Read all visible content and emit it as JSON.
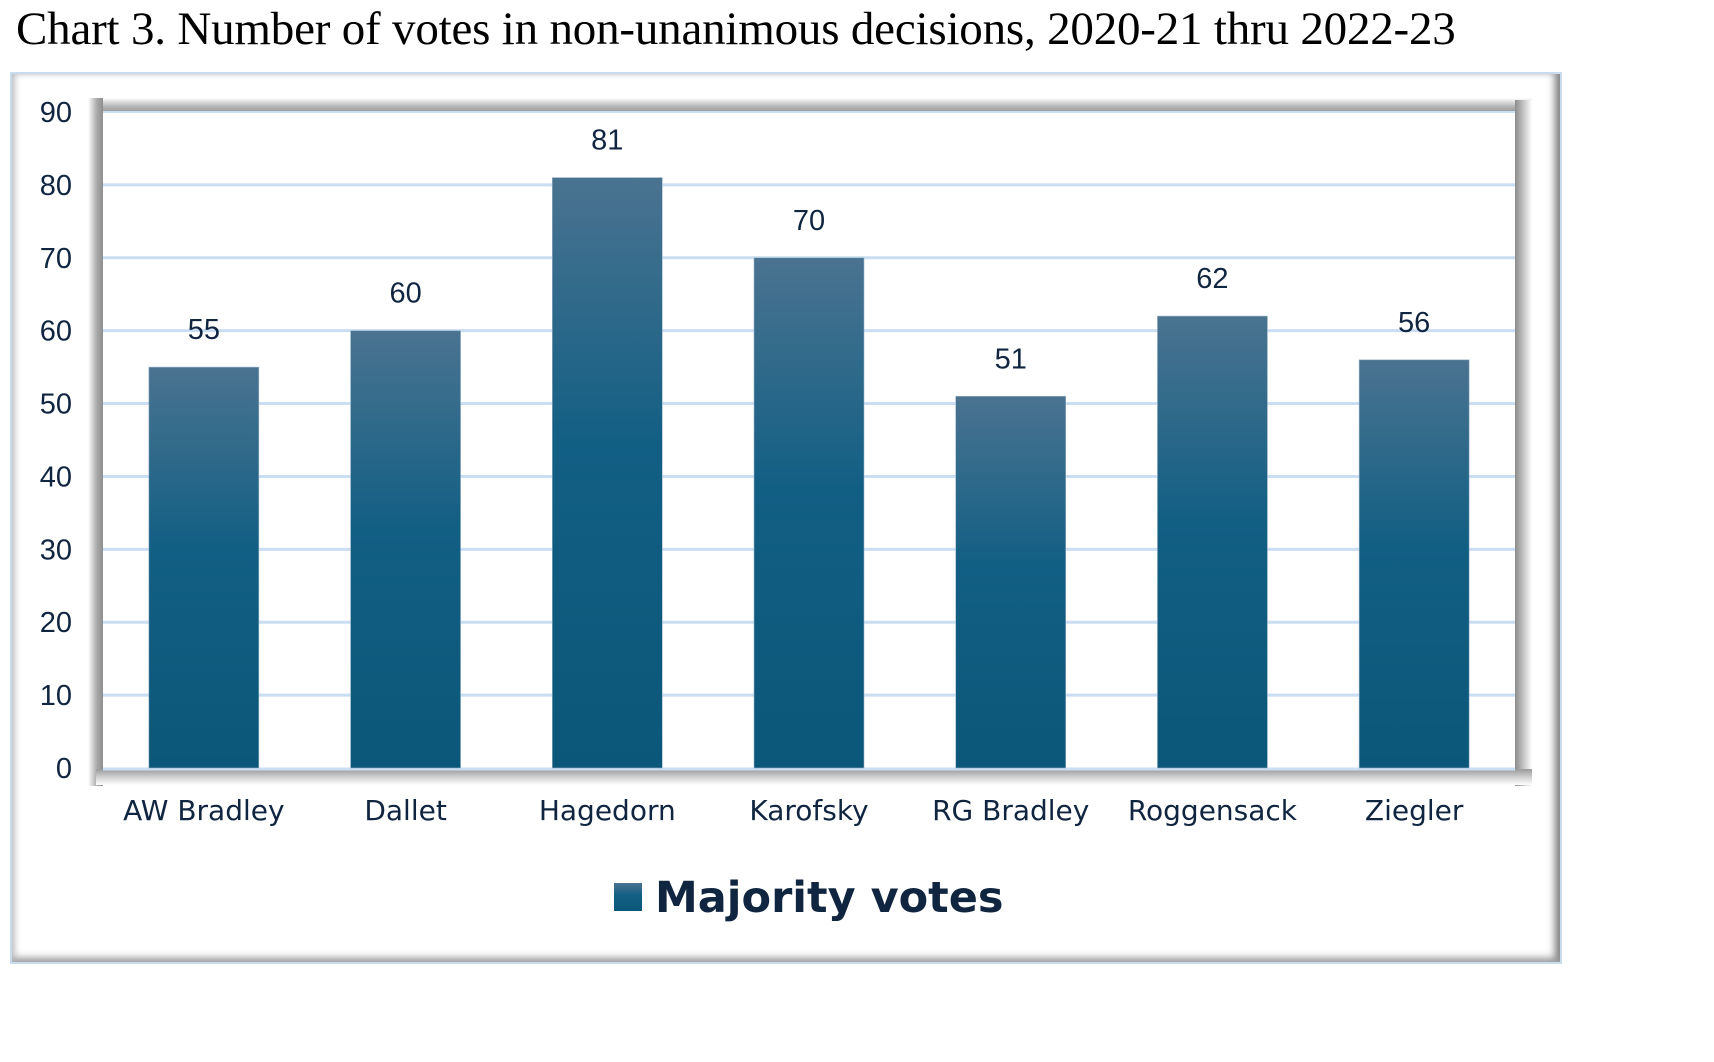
{
  "title": "Chart 3. Number of votes in non-unanimous decisions, 2020-21 thru 2022-23",
  "chart_data": {
    "type": "bar",
    "title": "Chart 3. Number of votes in non-unanimous decisions, 2020-21 thru 2022-23",
    "xlabel": "",
    "ylabel": "",
    "categories": [
      "AW Bradley",
      "Dallet",
      "Hagedorn",
      "Karofsky",
      "RG Bradley",
      "Roggensack",
      "Ziegler"
    ],
    "series": [
      {
        "name": "Majority votes",
        "values": [
          55,
          60,
          81,
          70,
          51,
          62,
          56
        ],
        "color_top": "#4a7390",
        "color_bottom": "#0b5779"
      }
    ],
    "ylim": [
      0,
      90
    ],
    "yticks": [
      0,
      10,
      20,
      30,
      40,
      50,
      60,
      70,
      80,
      90
    ],
    "grid": true,
    "grid_color": "#c9def2",
    "data_labels": true,
    "legend": {
      "entries": [
        "Majority votes"
      ],
      "placement": "bottom"
    },
    "text_color": "#10253f"
  }
}
